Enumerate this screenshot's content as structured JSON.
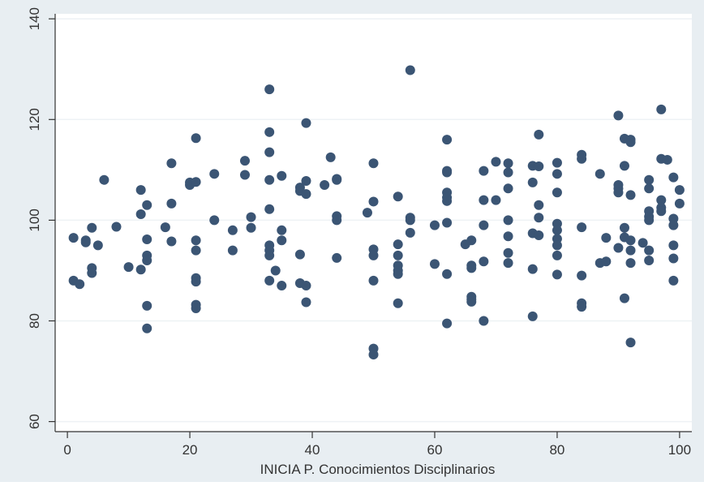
{
  "chart_data": {
    "type": "scatter",
    "title": "",
    "xlabel": "INICIA P. Conocimientos Disciplinarios",
    "ylabel": "",
    "xlim": [
      -2,
      102
    ],
    "ylim": [
      58,
      141
    ],
    "xticks": [
      0,
      20,
      40,
      60,
      80,
      100
    ],
    "yticks": [
      60,
      80,
      100,
      120,
      140
    ],
    "grid": "horizontal",
    "legend": "none",
    "colors": {
      "background": "#e8eef2",
      "plot_area": "#ffffff",
      "grid": "#eef2f5",
      "marker": "#3b5574",
      "axis": "#333333",
      "text": "#333333"
    },
    "points": [
      [
        1,
        96.5
      ],
      [
        1,
        88
      ],
      [
        2,
        87.3
      ],
      [
        3,
        96
      ],
      [
        3,
        95.6
      ],
      [
        4,
        98.5
      ],
      [
        4,
        90.5
      ],
      [
        4,
        89.5
      ],
      [
        5,
        95
      ],
      [
        6,
        108
      ],
      [
        8,
        98.7
      ],
      [
        10,
        90.7
      ],
      [
        12,
        106
      ],
      [
        12,
        101.2
      ],
      [
        12,
        90.2
      ],
      [
        13,
        103
      ],
      [
        13,
        96.2
      ],
      [
        13,
        93
      ],
      [
        13,
        92
      ],
      [
        13,
        83
      ],
      [
        13,
        78.5
      ],
      [
        16,
        98.6
      ],
      [
        17,
        111.3
      ],
      [
        17,
        103.3
      ],
      [
        17,
        95.8
      ],
      [
        20,
        107.5
      ],
      [
        20,
        107
      ],
      [
        21,
        116.3
      ],
      [
        21,
        107.6
      ],
      [
        21,
        96
      ],
      [
        21,
        94
      ],
      [
        21,
        88.5
      ],
      [
        21,
        87.8
      ],
      [
        21,
        83.2
      ],
      [
        21,
        82.5
      ],
      [
        24,
        109.2
      ],
      [
        24,
        100
      ],
      [
        27,
        98
      ],
      [
        27,
        94
      ],
      [
        29,
        111.8
      ],
      [
        29,
        109
      ],
      [
        30,
        100.6
      ],
      [
        30,
        98.5
      ],
      [
        33,
        126
      ],
      [
        33,
        117.5
      ],
      [
        33,
        113.5
      ],
      [
        33,
        108
      ],
      [
        33,
        102.2
      ],
      [
        33,
        95
      ],
      [
        33,
        94
      ],
      [
        33,
        93
      ],
      [
        33,
        88
      ],
      [
        34,
        90
      ],
      [
        35,
        108.8
      ],
      [
        35,
        98
      ],
      [
        35,
        96
      ],
      [
        35,
        87
      ],
      [
        38,
        106.5
      ],
      [
        38,
        105.8
      ],
      [
        38,
        93.2
      ],
      [
        38,
        87.5
      ],
      [
        39,
        119.3
      ],
      [
        39,
        107.8
      ],
      [
        39,
        105.2
      ],
      [
        39,
        87
      ],
      [
        39,
        83.7
      ],
      [
        42,
        107
      ],
      [
        43,
        112.5
      ],
      [
        44,
        108.2
      ],
      [
        44,
        108
      ],
      [
        44,
        100.8
      ],
      [
        44,
        100
      ],
      [
        44,
        92.5
      ],
      [
        49,
        101.5
      ],
      [
        50,
        111.3
      ],
      [
        50,
        103.7
      ],
      [
        50,
        94.2
      ],
      [
        50,
        93
      ],
      [
        50,
        88
      ],
      [
        50,
        74.5
      ],
      [
        50,
        73.3
      ],
      [
        54,
        104.7
      ],
      [
        54,
        95.2
      ],
      [
        54,
        93
      ],
      [
        54,
        91
      ],
      [
        54,
        90
      ],
      [
        54,
        89.3
      ],
      [
        54,
        83.5
      ],
      [
        56,
        129.8
      ],
      [
        56,
        100.5
      ],
      [
        56,
        100
      ],
      [
        56,
        97.5
      ],
      [
        60,
        99
      ],
      [
        60,
        91.3
      ],
      [
        62,
        116
      ],
      [
        62,
        109.8
      ],
      [
        62,
        109.5
      ],
      [
        62,
        105.5
      ],
      [
        62,
        104.5
      ],
      [
        62,
        103.8
      ],
      [
        62,
        99.5
      ],
      [
        62,
        89.3
      ],
      [
        62,
        79.5
      ],
      [
        65,
        95.2
      ],
      [
        66,
        96
      ],
      [
        66,
        91
      ],
      [
        66,
        90.5
      ],
      [
        66,
        84.8
      ],
      [
        66,
        84.3
      ],
      [
        66,
        83.8
      ],
      [
        68,
        109.8
      ],
      [
        68,
        104
      ],
      [
        68,
        99
      ],
      [
        68,
        91.8
      ],
      [
        68,
        80
      ],
      [
        70,
        111.6
      ],
      [
        70,
        104
      ],
      [
        72,
        111.3
      ],
      [
        72,
        109.5
      ],
      [
        72,
        106.3
      ],
      [
        72,
        100
      ],
      [
        72,
        96.8
      ],
      [
        72,
        93.5
      ],
      [
        72,
        91.5
      ],
      [
        76,
        110.8
      ],
      [
        76,
        107.5
      ],
      [
        76,
        97.4
      ],
      [
        76,
        90.3
      ],
      [
        76,
        80.9
      ],
      [
        77,
        117
      ],
      [
        77,
        110.7
      ],
      [
        77,
        103
      ],
      [
        77,
        100.5
      ],
      [
        77,
        97
      ],
      [
        80,
        111.4
      ],
      [
        80,
        109.2
      ],
      [
        80,
        105.5
      ],
      [
        80,
        99.3
      ],
      [
        80,
        98
      ],
      [
        80,
        96.3
      ],
      [
        80,
        95
      ],
      [
        80,
        93
      ],
      [
        80,
        89.2
      ],
      [
        84,
        113
      ],
      [
        84,
        112.2
      ],
      [
        84,
        98.6
      ],
      [
        84,
        89
      ],
      [
        84,
        83.5
      ],
      [
        84,
        82.8
      ],
      [
        87,
        109.2
      ],
      [
        87,
        91.5
      ],
      [
        88,
        96.5
      ],
      [
        88,
        91.8
      ],
      [
        90,
        120.8
      ],
      [
        90,
        107
      ],
      [
        90,
        106.3
      ],
      [
        90,
        105.5
      ],
      [
        90,
        94.5
      ],
      [
        91,
        116.2
      ],
      [
        91,
        110.8
      ],
      [
        91,
        98.5
      ],
      [
        91,
        96.6
      ],
      [
        91,
        84.5
      ],
      [
        92,
        115.5
      ],
      [
        92,
        116
      ],
      [
        92,
        105
      ],
      [
        92,
        96
      ],
      [
        92,
        94
      ],
      [
        92,
        91.5
      ],
      [
        92,
        75.7
      ],
      [
        94,
        95.5
      ],
      [
        95,
        108
      ],
      [
        95,
        106.3
      ],
      [
        95,
        101.8
      ],
      [
        95,
        100.7
      ],
      [
        95,
        100
      ],
      [
        95,
        94
      ],
      [
        95,
        92
      ],
      [
        97,
        122
      ],
      [
        97,
        112.2
      ],
      [
        97,
        104
      ],
      [
        97,
        102.5
      ],
      [
        97,
        101.8
      ],
      [
        98,
        112
      ],
      [
        99,
        108.5
      ],
      [
        99,
        100.3
      ],
      [
        99,
        99
      ],
      [
        99,
        95
      ],
      [
        99,
        92.4
      ],
      [
        99,
        88
      ],
      [
        100,
        106
      ],
      [
        100,
        103.3
      ]
    ]
  }
}
